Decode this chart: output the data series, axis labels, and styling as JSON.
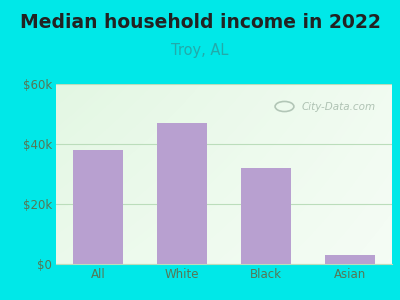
{
  "title": "Median household income in 2022",
  "subtitle": "Troy, AL",
  "categories": [
    "All",
    "White",
    "Black",
    "Asian"
  ],
  "values": [
    38000,
    47000,
    32000,
    3000
  ],
  "bar_color": "#b8a0d0",
  "title_fontsize": 13.5,
  "subtitle_fontsize": 10.5,
  "subtitle_color": "#22aaaa",
  "title_color": "#222222",
  "background_color": "#00e8e8",
  "plot_bg_left_top": "#c8eec8",
  "plot_bg_right": "#f5fff5",
  "ylim": [
    0,
    60000
  ],
  "yticks": [
    0,
    20000,
    40000,
    60000
  ],
  "ytick_labels": [
    "$0",
    "$20k",
    "$40k",
    "$60k"
  ],
  "grid_color": "#bbddbb",
  "watermark": "City-Data.com",
  "tick_color": "#557755",
  "axis_label_fontsize": 8.5
}
